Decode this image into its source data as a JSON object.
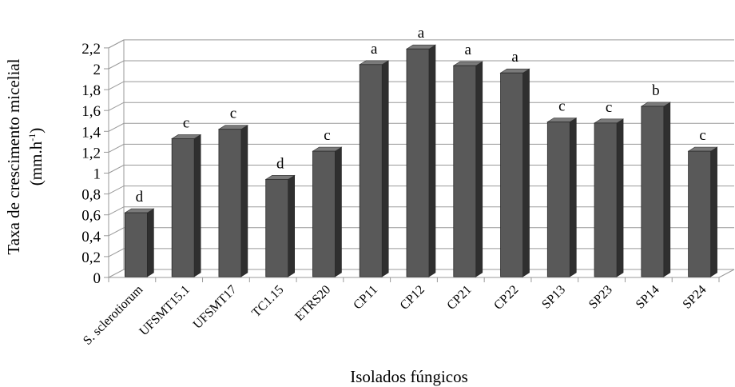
{
  "chart_data": {
    "type": "bar",
    "categories": [
      "S. sclerotiorum",
      "UFSMT15.1",
      "UFSMT17",
      "TC1.15",
      "ETRS20",
      "CP11",
      "CP12",
      "CP21",
      "CP22",
      "SP13",
      "SP23",
      "SP14",
      "SP24"
    ],
    "values": [
      0.62,
      1.33,
      1.42,
      0.94,
      1.21,
      2.04,
      2.19,
      2.03,
      1.96,
      1.49,
      1.48,
      1.64,
      1.21
    ],
    "significance_letters": [
      "d",
      "c",
      "c",
      "d",
      "c",
      "a",
      "a",
      "a",
      "a",
      "c",
      "c",
      "b",
      "c"
    ],
    "ylabel_line1": "Taxa  de crescimento micelial",
    "ylabel_line2": "(mm.h",
    "ylabel_sup": "-1",
    "ylabel_close": ")",
    "xlabel": "Isolados fúngicos",
    "ylim": [
      0,
      2.2
    ],
    "yticks": [
      "0",
      "0,2",
      "0,4",
      "0,6",
      "0,8",
      "1",
      "1,2",
      "1,4",
      "1,6",
      "1,8",
      "2",
      "2,2"
    ],
    "grid": true,
    "bar_color": "#595959",
    "three_d": true
  }
}
